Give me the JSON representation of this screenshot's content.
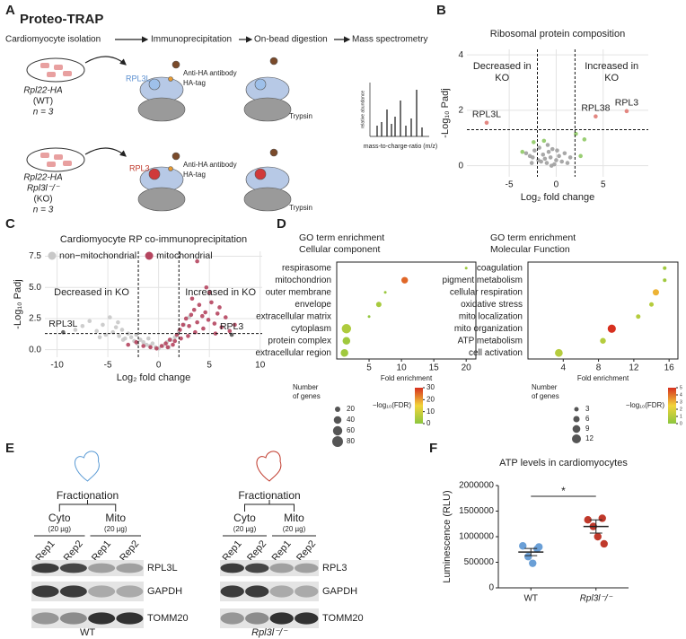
{
  "panel_labels": [
    "A",
    "B",
    "C",
    "D",
    "E",
    "F"
  ],
  "panel_a": {
    "title": "Proteo-TRAP",
    "steps": [
      "Cardiomyocyte isolation",
      "Immunoprecipitation",
      "On-bead digestion",
      "Mass spectrometry"
    ],
    "wt": {
      "line1": "Rpl22-HA",
      "line2": "(WT)",
      "n": "n = 3",
      "protein": "RPL3L"
    },
    "ko": {
      "line1": "Rpl22-HA",
      "line2": "Rpl3l⁻/⁻",
      "line3": "(KO)",
      "n": "n = 3",
      "protein": "RPL3"
    },
    "antibody": "Anti-HA antibody",
    "tag": "HA-tag",
    "trypsin": "Trypsin",
    "ms_x": "mass-to-charge-ratio (m/z)",
    "ms_y": "relative abundance"
  },
  "panel_e": {
    "wt": {
      "header": "Fractionation",
      "groups": [
        "Cyto",
        "Mito"
      ],
      "amounts": [
        "(20 µg)",
        "(20 µg)"
      ],
      "lanes": [
        "Rep1",
        "Rep2",
        "Rep1",
        "Rep2"
      ],
      "bands": [
        "RPL3L",
        "GAPDH",
        "TOMM20"
      ],
      "genotype": "WT"
    },
    "ko": {
      "header": "Fractionation",
      "groups": [
        "Cyto",
        "Mito"
      ],
      "amounts": [
        "(20 µg)",
        "(20 µg)"
      ],
      "lanes": [
        "Rep1",
        "Rep2",
        "Rep1",
        "Rep2"
      ],
      "bands": [
        "RPL3",
        "GAPDH",
        "TOMM20"
      ],
      "genotype": "Rpl3l⁻/⁻"
    }
  },
  "chart_data": [
    {
      "type": "scatter",
      "title": "Ribosomal protein composition",
      "xlabel": "Log₂ fold change",
      "ylabel": "-Log₁₀ Padj",
      "xlim": [
        -9.5,
        9.8
      ],
      "ylim": [
        -0.4,
        4.2
      ],
      "xticks": [
        -5,
        0,
        5
      ],
      "yticks": [
        0,
        2,
        4
      ],
      "grid": true,
      "thresholds": {
        "x": [
          -2,
          2
        ],
        "y": 1.3
      },
      "annotations": [
        [
          "Decreased in",
          "KO"
        ],
        [
          "Increased in",
          "KO"
        ]
      ],
      "series": [
        {
          "color": "#9e9e9e",
          "x": [
            -3.2,
            -2.8,
            -2.5,
            -2.3,
            -1.9,
            -1.6,
            -1.4,
            -1.2,
            -1.0,
            -0.8,
            -0.6,
            -0.4,
            -0.2,
            0,
            0.3,
            0.6,
            0.9,
            1.2,
            -1.8,
            -0.9,
            0.1,
            1.5,
            -2.6,
            -0.5
          ],
          "values": [
            0.45,
            0.35,
            0.3,
            0.55,
            0.2,
            0.15,
            0.4,
            0.25,
            0.1,
            0.5,
            0.3,
            0.6,
            0.05,
            0.2,
            0.35,
            0.15,
            0.45,
            0.1,
            0.65,
            0.75,
            0.55,
            0.3,
            0.1,
            0
          ]
        },
        {
          "color": "#8fc965",
          "x": [
            -2.4,
            -1.3,
            2.1,
            2.6,
            3.0,
            -3.6
          ],
          "values": [
            0.85,
            0.9,
            1.15,
            0.35,
            0.95,
            0.5
          ]
        },
        {
          "color": "#e07a73",
          "x": [
            -7.4,
            4.2,
            7.5
          ],
          "values": [
            1.55,
            1.78,
            1.97
          ],
          "labels": [
            "RPL3L",
            "RPL38",
            "RPL3"
          ]
        }
      ]
    },
    {
      "type": "scatter",
      "title": "Cardiomyocyte RP co-immunoprecipitation",
      "xlabel": "Log₂ fold change",
      "ylabel": "-Log₁₀ Padj",
      "xlim": [
        -11.2,
        10.2
      ],
      "ylim": [
        -0.6,
        7.9
      ],
      "xticks": [
        -10,
        -5,
        0,
        5,
        10
      ],
      "yticks": [
        {
          "value": 0,
          "label": "0.0"
        },
        2.5,
        {
          "value": 5,
          "label": "5.0"
        },
        7.5
      ],
      "grid": true,
      "thresholds": {
        "x": [
          -2,
          2
        ],
        "y": 1.3
      },
      "annotations": [
        [
          "Decreased in KO"
        ],
        [
          "Increased in KO"
        ]
      ],
      "series": [
        {
          "name": "non−mitochondrial",
          "color": "#c8c8c8",
          "x": [
            -8.2,
            -7.5,
            -6.8,
            -6.1,
            -5.5,
            -5.2,
            -4.8,
            -4.5,
            -4.2,
            -3.9,
            -3.6,
            -3.3,
            -3.0,
            -2.7,
            -2.4,
            -2.1,
            -1.8,
            -1.5,
            -1.2,
            -0.9,
            -0.6,
            -0.3,
            0,
            0.4,
            0.8,
            1.2,
            1.6,
            2.0,
            2.5,
            3.0,
            -4.0,
            -3.5,
            -2.2,
            -5.8,
            1.0,
            -1.0
          ],
          "values": [
            1.6,
            1.9,
            2.3,
            1.5,
            2.0,
            1.2,
            2.6,
            1.4,
            1.8,
            1.1,
            1.6,
            0.9,
            1.3,
            1.0,
            0.7,
            0.5,
            0.8,
            0.6,
            0.4,
            0.3,
            0.5,
            0.2,
            0.1,
            0.3,
            0.6,
            0.8,
            1.0,
            1.5,
            2.0,
            2.6,
            2.2,
            0.8,
            1.2,
            1.0,
            0.2,
            0.9
          ]
        },
        {
          "name": "mitochondrial",
          "color": "#b5455f",
          "x": [
            -3.0,
            -2.2,
            -1.5,
            -0.8,
            -0.2,
            0.3,
            0.7,
            1.1,
            1.4,
            1.8,
            2.1,
            2.4,
            2.7,
            3.0,
            3.2,
            3.5,
            3.8,
            4.0,
            4.3,
            4.6,
            4.9,
            5.2,
            5.5,
            5.8,
            6.2,
            6.6,
            7.0,
            7.5,
            2.2,
            2.9,
            3.6,
            4.4,
            5.0,
            5.6,
            6.0,
            1.6,
            0.9,
            3.8,
            4.7,
            3.3
          ],
          "values": [
            0.4,
            0.6,
            0.3,
            0.2,
            0.1,
            0.3,
            0.5,
            0.8,
            0.4,
            1.2,
            1.6,
            2.0,
            2.5,
            1.9,
            2.8,
            3.2,
            2.2,
            3.6,
            2.7,
            3.0,
            2.4,
            3.8,
            2.1,
            2.9,
            1.8,
            2.6,
            1.5,
            2.0,
            0.9,
            1.1,
            1.4,
            1.7,
            4.6,
            1.3,
            3.4,
            0.7,
            0.2,
            7.1,
            5.0,
            4.1
          ]
        },
        {
          "color": "#555555",
          "x": [
            -9.4,
            7.2
          ],
          "values": [
            1.4,
            1.2
          ],
          "labels": [
            "RPL3L",
            "RPL3"
          ]
        }
      ]
    },
    {
      "type": "dot",
      "title": "GO term enrichment",
      "subtitle": "Cellular component",
      "xlabel": "Fold enrichment",
      "categories": [
        "respirasome",
        "mitochondrion",
        "outer membrane",
        "envelope",
        "extracellular matrix",
        "cytoplasm",
        "protein complex",
        "extracellular region"
      ],
      "values": [
        20,
        10.5,
        7.5,
        6.5,
        5,
        1.5,
        1.5,
        1.2
      ],
      "sizes": [
        5,
        30,
        5,
        20,
        5,
        60,
        40,
        40
      ],
      "fdr": [
        2,
        25,
        2,
        4,
        1,
        5,
        3,
        3
      ],
      "xlim": [
        0,
        21.5
      ],
      "xticks": [
        5,
        10,
        15,
        20
      ],
      "size_legend": {
        "title": [
          "Number",
          "of genes"
        ],
        "values": [
          20,
          40,
          60,
          80
        ]
      },
      "color_legend": {
        "title": "−log₁₀(FDR)",
        "lim": [
          0,
          30
        ],
        "ticks": [
          0,
          10,
          20,
          30
        ]
      },
      "color_scale": [
        "#8cc63f",
        "#f2d43a",
        "#d7301f"
      ]
    },
    {
      "type": "dot",
      "title": "GO term enrichment",
      "subtitle": "Molecular Function",
      "xlabel": "Fold enrichment",
      "categories": [
        "coagulation",
        "pigment metabolism",
        "cellular respiration",
        "oxidative stress",
        "mito localization",
        "mito organization",
        "ATP metabolism",
        "cell activation"
      ],
      "values": [
        15.5,
        15.5,
        14.5,
        14,
        12.5,
        9.5,
        8.5,
        3.5
      ],
      "sizes": [
        2,
        2,
        6,
        3,
        3,
        10,
        5,
        9
      ],
      "fdr": [
        0.5,
        0.5,
        3,
        1,
        1,
        5,
        1,
        1
      ],
      "xlim": [
        0,
        17
      ],
      "xticks": [
        4,
        8,
        12,
        16
      ],
      "size_legend": {
        "title": [
          "Number",
          "of genes"
        ],
        "values": [
          3,
          6,
          9,
          12
        ]
      },
      "color_legend": {
        "title": "−log₁₀(FDR)",
        "lim": [
          0,
          5
        ],
        "ticks": [
          0,
          1,
          2,
          3,
          4,
          5
        ]
      },
      "color_scale": [
        "#8cc63f",
        "#f2d43a",
        "#d7301f"
      ]
    },
    {
      "type": "strip",
      "title": "ATP levels in cardiomyocytes",
      "ylabel": "Luminescence (RLU)",
      "categories": [
        "WT",
        "Rpl3l⁻/⁻"
      ],
      "colors": [
        "#6a9fd6",
        "#c0392b"
      ],
      "values": [
        [
          820000,
          760000,
          610000,
          480000,
          800000
        ],
        [
          1330000,
          1360000,
          1200000,
          1000000,
          860000
        ]
      ],
      "mean": [
        700000,
        1200000
      ],
      "sem": [
        70000,
        130000
      ],
      "significance": "*",
      "ylim": [
        0,
        2000000
      ],
      "yticks": [
        0,
        500000,
        1000000,
        1500000,
        2000000
      ]
    }
  ]
}
